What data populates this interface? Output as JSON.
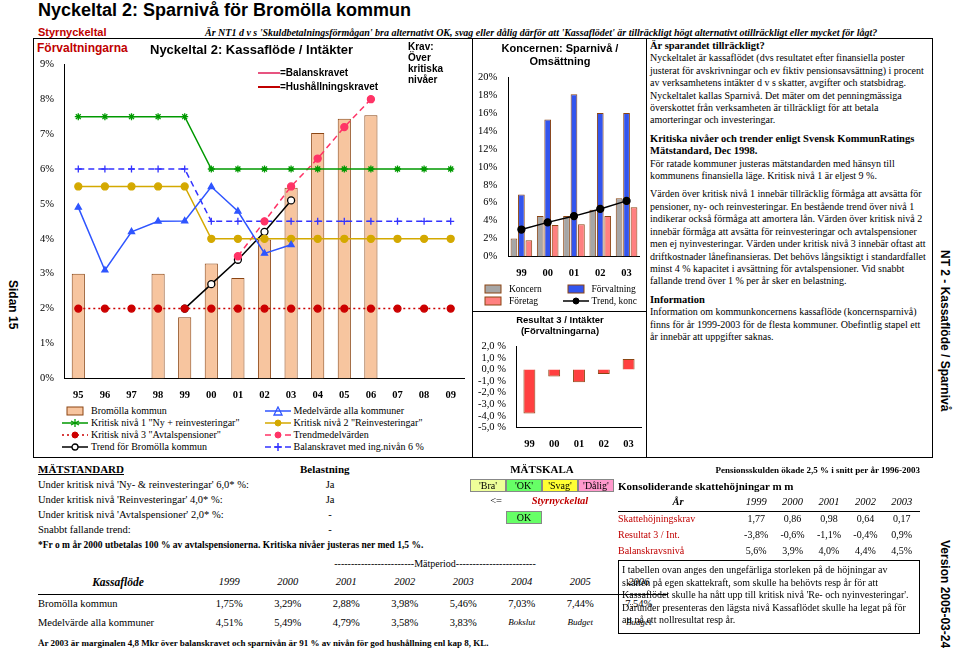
{
  "header": {
    "title": "Nyckeltal 2: Sparnivå för Bromölla kommun",
    "tag": "Styrnyckeltal",
    "question": "Är NT1 d v s 'Skuldbetalningsförmågan' bra alternativt OK, svag eller dålig därför att 'Kassaflödet' är tillräckligt högt alternativt otillräckligt eller mycket för lågt?"
  },
  "side": {
    "left": "Sidan 15",
    "right": "NT 2 - Kassaflöde / Sparnivå",
    "version": "Version 2005-03-24"
  },
  "main_panel": {
    "label": "Förvaltningarna",
    "krav": [
      "Krav:",
      "Över",
      "kritiska",
      "nivåer"
    ],
    "krav_legend": [
      {
        "label": "=Balanskravet",
        "color": "#e75480"
      },
      {
        "label": "=Hushållningskravet",
        "color": "#c00000"
      }
    ]
  },
  "chart_data": [
    {
      "type": "bar",
      "title": "Nyckeltal 2: Kassaflöde / Intäkter",
      "categories": [
        "95",
        "96",
        "97",
        "98",
        "99",
        "00",
        "01",
        "02",
        "03",
        "04",
        "05",
        "06",
        "07",
        "08",
        "09"
      ],
      "series": [
        {
          "name": "Bromölla kommun",
          "type": "bar",
          "color": "#f7c59f",
          "values": [
            3.0,
            null,
            null,
            3.0,
            1.75,
            3.29,
            2.88,
            3.98,
            5.46,
            7.03,
            7.44,
            7.54,
            null,
            null,
            null
          ]
        },
        {
          "name": "Medelvärde alla kommuner",
          "type": "line",
          "color": "#2f55ff",
          "marker": "triangle",
          "line_style": "solid",
          "values": [
            4.9,
            3.1,
            4.2,
            4.5,
            4.51,
            5.49,
            4.79,
            3.58,
            3.83,
            null,
            null,
            null,
            null,
            null,
            null
          ]
        },
        {
          "name": "Kritisk nivå 1 \"Ny + reinvesteringar\"",
          "type": "line",
          "color": "#009900",
          "marker": "star",
          "line_style": "solid",
          "values": [
            7.5,
            7.5,
            7.5,
            7.5,
            7.5,
            6.0,
            6.0,
            6.0,
            6.0,
            6.0,
            6.0,
            6.0,
            6.0,
            6.0,
            6.0
          ]
        },
        {
          "name": "Kritisk nivå 2 \"Reinvesteringar\"",
          "type": "line",
          "color": "#d4a900",
          "marker": "circle",
          "line_style": "solid",
          "values": [
            5.5,
            5.5,
            5.5,
            5.5,
            5.5,
            4.0,
            4.0,
            4.0,
            4.0,
            4.0,
            4.0,
            4.0,
            4.0,
            4.0,
            4.0
          ]
        },
        {
          "name": "Kritisk nivå 3 \"Avtalspensioner\"",
          "type": "line",
          "color": "#cc0000",
          "marker": "circle",
          "line_style": "dotted",
          "values": [
            2.0,
            2.0,
            2.0,
            2.0,
            2.0,
            2.0,
            2.0,
            2.0,
            2.0,
            2.0,
            2.0,
            2.0,
            2.0,
            2.0,
            2.0
          ]
        },
        {
          "name": "Trendmedelvärden",
          "type": "line",
          "color": "#ff3366",
          "marker": "circle",
          "line_style": "dashed",
          "values": [
            null,
            null,
            null,
            null,
            null,
            null,
            3.5,
            4.5,
            5.5,
            6.3,
            7.2,
            8.0,
            null,
            null,
            null
          ]
        },
        {
          "name": "Trend för Bromölla kommun",
          "type": "line",
          "color": "#000000",
          "marker": "open_circle",
          "line_style": "solid",
          "values": [
            null,
            null,
            null,
            null,
            2.0,
            2.7,
            3.4,
            4.2,
            5.1,
            null,
            null,
            null,
            null,
            null,
            null
          ]
        },
        {
          "name": "Balanskravet med ing.nivån 6 %",
          "type": "line",
          "color": "#3333ff",
          "marker": "cross",
          "line_style": "dashed",
          "values": [
            6.0,
            6.0,
            6.0,
            6.0,
            6.0,
            4.5,
            4.5,
            4.5,
            4.5,
            4.5,
            4.5,
            4.5,
            4.5,
            4.5,
            4.5
          ]
        }
      ],
      "ylim": [
        0,
        9
      ],
      "yticks": [
        {
          "value": 0,
          "label": "0%"
        },
        {
          "value": 1,
          "label": "1%"
        },
        {
          "value": 2,
          "label": "2%"
        },
        {
          "value": 3,
          "label": "3%"
        },
        {
          "value": 4,
          "label": "4%"
        },
        {
          "value": 5,
          "label": "5%"
        },
        {
          "value": 6,
          "label": "6%"
        },
        {
          "value": 7,
          "label": "7%"
        },
        {
          "value": 8,
          "label": "8%"
        },
        {
          "value": 9,
          "label": "9%"
        }
      ],
      "grid": false
    },
    {
      "type": "bar",
      "title": "Koncernen: Sparnivå / Omsättning",
      "categories": [
        "99",
        "00",
        "01",
        "02",
        "03"
      ],
      "series": [
        {
          "name": "Koncern",
          "type": "bar",
          "color": "#a6a6a6",
          "values": [
            2.0,
            4.5,
            4.5,
            5.2,
            6.5
          ]
        },
        {
          "name": "Förvaltning",
          "type": "bar",
          "color": "#3355ee",
          "values": [
            6.9,
            15.3,
            18.1,
            16.0,
            16.0
          ]
        },
        {
          "name": "Företag",
          "type": "bar",
          "color": "#ff8080",
          "values": [
            1.8,
            3.5,
            3.6,
            4.5,
            5.5
          ]
        },
        {
          "name": "Trend, konc",
          "type": "line",
          "color": "#000000",
          "marker": "circle",
          "line_style": "solid",
          "values": [
            3.0,
            3.8,
            4.5,
            5.3,
            6.2
          ]
        }
      ],
      "ylim": [
        0,
        20
      ],
      "yticks": [
        {
          "value": 0,
          "label": "0%"
        },
        {
          "value": 2,
          "label": "2%"
        },
        {
          "value": 4,
          "label": "4%"
        },
        {
          "value": 6,
          "label": "6%"
        },
        {
          "value": 8,
          "label": "8%"
        },
        {
          "value": 10,
          "label": "10%"
        },
        {
          "value": 12,
          "label": "12%"
        },
        {
          "value": 14,
          "label": "14%"
        },
        {
          "value": 16,
          "label": "16%"
        },
        {
          "value": 18,
          "label": "18%"
        },
        {
          "value": 20,
          "label": "20%"
        }
      ],
      "grid": false
    },
    {
      "type": "bar",
      "title": "Resultat 3 / Intäkter",
      "subtitle": "(Förvaltningarna)",
      "categories": [
        "99",
        "00",
        "01",
        "02",
        "03"
      ],
      "series": [
        {
          "name": "Resultat 3 / Intäkter",
          "type": "bar",
          "color": "#ff4040",
          "values": [
            -3.8,
            -0.6,
            -1.1,
            -0.4,
            0.9
          ]
        }
      ],
      "ylim": [
        -5,
        2
      ],
      "yticks": [
        {
          "value": -5,
          "label": "-5,0 %"
        },
        {
          "value": -4,
          "label": "-4,0 %"
        },
        {
          "value": -3,
          "label": "-3,0 %"
        },
        {
          "value": -2,
          "label": "-2,0 %"
        },
        {
          "value": -1,
          "label": "-1,0 %"
        },
        {
          "value": 0,
          "label": "0,0 %"
        },
        {
          "value": 1,
          "label": "1,0 %"
        },
        {
          "value": 2,
          "label": "2,0 %"
        }
      ],
      "grid": false
    }
  ],
  "text_panel": [
    {
      "heading": "Är sparandet tillräckligt?",
      "body": "Nyckeltalet är kassaflödet (dvs resultatet efter finansiella poster justerat för avskrivningar och ev fiktiv pensionsavsättning) i procent av verksamhetens intäkter d v s skatter, avgifter och statsbidrag. Nyckeltalet kallas Sparnivå. Det mäter om det penningmässiga överskottet från verksamheten är tillräckligt för att betala amorteringar och investeringar."
    },
    {
      "heading": "Kritiska nivåer och trender enligt Svensk KommunRatings Mätstandard, Dec 1998.",
      "body": "För ratade kommuner justeras mätstandarden med hänsyn till kommunens finansiella läge. Kritisk nivå 1 är eljest 9 %."
    },
    {
      "body": "Värden över kritisk nivå 1 innebär tillräcklig förmåga att avsätta för pensioner, ny- och reinvesteringar. En bestående trend över nivå 1 indikerar också förmåga att amortera lån. Värden över kritisk nivå 2 innebär förmåga att avsätta för reinvesteringar och avtalspensioner men ej nyinvesteringar. Värden under kritisk nivå 3 innebär oftast att driftkostnader lånefinansieras. Det behövs långsiktigt i standardfallet minst 4 % kapacitet i avsättning för avtalspensioner. Vid snabbt fallande trend över 1 % per år sker en belastning."
    },
    {
      "heading": "Information",
      "body": "Information om kommunkoncernens kassaflöde (koncernsparnivå) finns för år 1999-2003 för de flesta kommuner. Obefintlig stapel ett år innebär att uppgifter saknas."
    }
  ],
  "matstandard": {
    "title": "MÄTSTANDARD",
    "column": "Belastning",
    "rows": [
      [
        "Under kritisk nivå 'Ny- & reinvesteringar' 6,0* %:",
        "Ja"
      ],
      [
        "Under kritisk nivå 'Reinvesteringar' 4,0* %:",
        "Ja"
      ],
      [
        "Under kritisk nivå 'Avtalspensioner' 2,0* %:",
        "-"
      ],
      [
        "Snabbt fallande trend:",
        "-"
      ]
    ],
    "note": "*Fr o m år 2000 utbetalas 100 % av avtalspensionerna. Kritiska nivåer justeras ner med 1,5 %."
  },
  "matskala": {
    "title": "MÄTSKALA",
    "scale": [
      {
        "label": "'Bra'",
        "color": "#eeff99"
      },
      {
        "label": "'OK'",
        "color": "#66ff66"
      },
      {
        "label": "'Svag'",
        "color": "#ffff33"
      },
      {
        "label": "'Dålig'",
        "color": "#ff99cc"
      }
    ],
    "pointer": "<=",
    "pointer_label": "Styrnyckeltal",
    "result": {
      "text": "OK",
      "under": "'OK'"
    }
  },
  "kassaflode": {
    "period": "------------------------Mätperiod------------------------",
    "label": "Kassaflöde",
    "years": [
      "1999",
      "2000",
      "2001",
      "2002",
      "2003",
      "2004",
      "2005",
      "2006"
    ],
    "rows": [
      {
        "label": "Bromölla kommun",
        "cells": [
          "1,75%",
          "3,29%",
          "2,88%",
          "3,98%",
          "5,46%",
          "7,03%",
          "7,44%",
          "7,54%"
        ]
      },
      {
        "label": "Medelvärde alla kommuner",
        "cells": [
          "4,51%",
          "5,49%",
          "4,79%",
          "3,58%",
          "3,83%",
          "Bokslut",
          "Budget",
          "Budget"
        ]
      }
    ],
    "footnote": "År 2003 är marginalen 4,8 Mkr över balanskravet och sparnivån är 91 % av nivån för god hushållning enl kap 8, KL."
  },
  "skatt": {
    "note": "Pensionsskulden ökade 2,5 % i snitt per år 1996-2003",
    "title": "Konsoliderande skattehöjningar m m",
    "header": [
      "År",
      "1999",
      "2000",
      "2001",
      "2002",
      "2003"
    ],
    "rows": [
      {
        "label": "Skattehöjningskrav",
        "cells": [
          "1,77",
          "0,86",
          "0,98",
          "0,64",
          "0,17"
        ]
      },
      {
        "label": "Resultat 3 / Int.",
        "cells": [
          "-3,8%",
          "-0,6%",
          "-1,1%",
          "-0,4%",
          "0,9%"
        ]
      },
      {
        "label": "Balanskravsnivå",
        "cells": [
          "5,6%",
          "3,9%",
          "4,0%",
          "4,4%",
          "4,5%"
        ]
      }
    ],
    "text": "I tabellen ovan anges den ungefärliga storleken på de höjningar av skatten på egen skattekraft, som skulle ha behövts resp år för att Kassaflödet skulle ha nått upp till  kritisk nivå 'Re- och nyinvesteringar'. Därunder presenteras den lägsta nivå Kassaflödet skulle ha legat på för att nå ett nollresultat resp år."
  }
}
